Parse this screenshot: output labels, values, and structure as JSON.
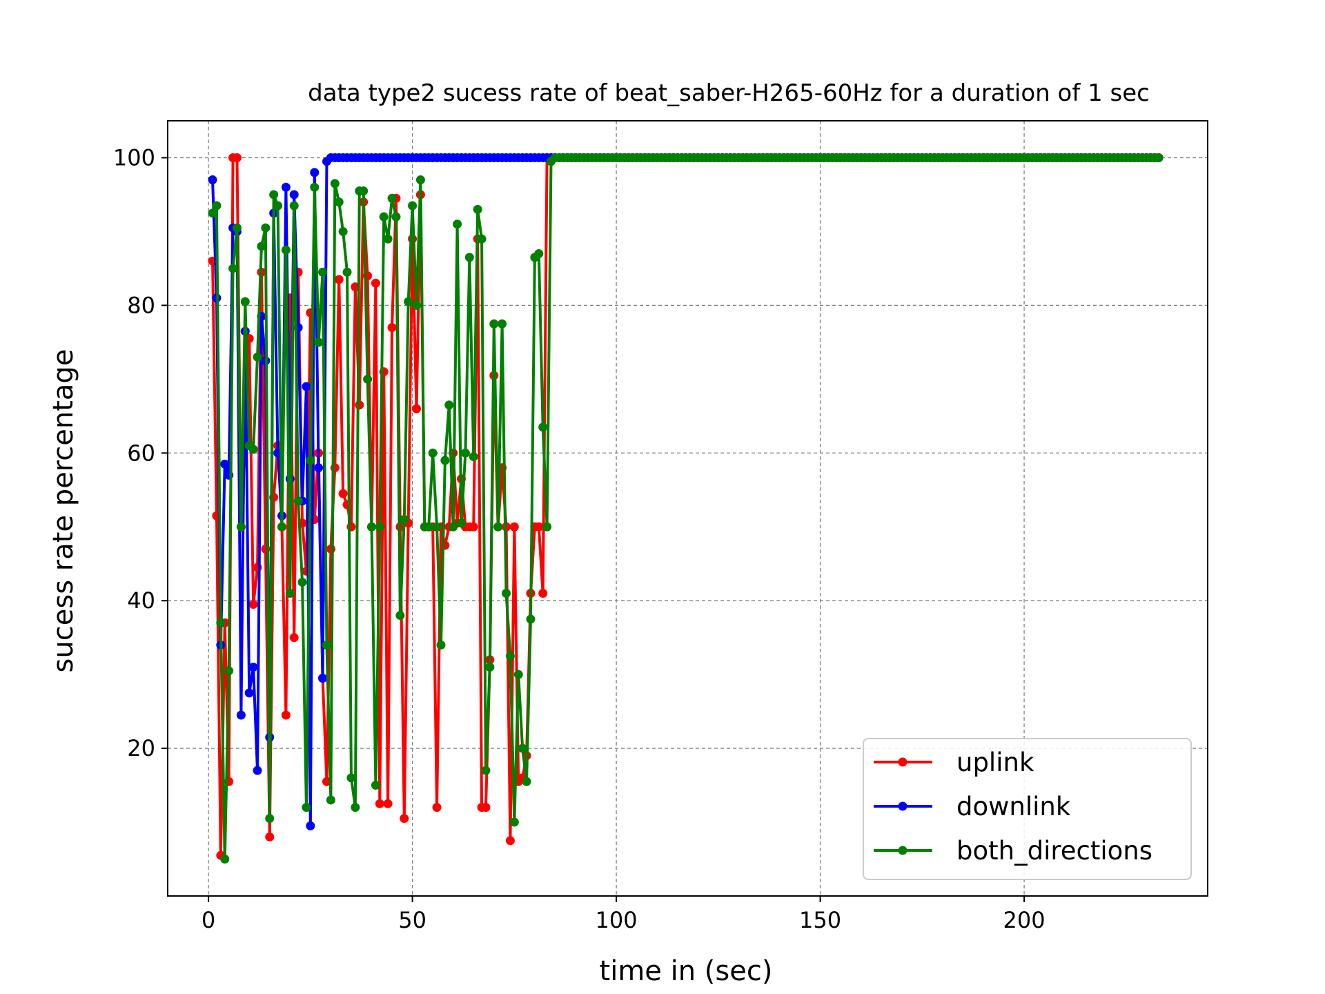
{
  "chart_data": {
    "type": "line",
    "title": "data type2 sucess rate of beat_saber-H265-60Hz for a duration of 1 sec",
    "xlabel": "time in (sec)",
    "ylabel": "sucess rate percentage",
    "xlim": [
      -10,
      245
    ],
    "ylim": [
      0,
      105
    ],
    "xticks": [
      0,
      50,
      100,
      150,
      200
    ],
    "yticks": [
      20,
      40,
      60,
      80,
      100
    ],
    "grid": true,
    "legend_position": "lower-right",
    "series": [
      {
        "name": "uplink",
        "color": "#ff0000",
        "x": [
          1,
          2,
          3,
          4,
          5,
          6,
          7,
          8,
          9,
          10,
          11,
          12,
          13,
          14,
          15,
          16,
          17,
          18,
          19,
          20,
          21,
          22,
          23,
          24,
          25,
          26,
          27,
          28,
          29,
          30,
          31,
          32,
          33,
          34,
          35,
          36,
          37,
          38,
          39,
          40,
          41,
          42,
          43,
          44,
          45,
          46,
          47,
          48,
          49,
          50,
          51,
          52,
          53,
          54,
          55,
          56,
          57,
          58,
          59,
          60,
          61,
          62,
          63,
          64,
          65,
          66,
          67,
          68,
          69,
          70,
          71,
          72,
          73,
          74,
          75,
          76,
          77,
          78,
          79,
          80,
          81,
          82,
          83,
          84,
          233
        ],
        "y": [
          86,
          51.5,
          5.5,
          37,
          15.5,
          100,
          100,
          50,
          62,
          75.5,
          39.5,
          44.5,
          84.5,
          47,
          8,
          54,
          61,
          50,
          24.5,
          81,
          35,
          84.5,
          50.5,
          44,
          79,
          51,
          60,
          29.5,
          15.5,
          47,
          58,
          83.5,
          54.5,
          53,
          50,
          82.5,
          66.5,
          94,
          84,
          50,
          83,
          12.5,
          71,
          12.5,
          77,
          94.5,
          50,
          10.5,
          50.5,
          89,
          66,
          95,
          50,
          50,
          50,
          12,
          50,
          47.5,
          50,
          60,
          50.5,
          56.5,
          50,
          50,
          50,
          89,
          12,
          12,
          32,
          70.5,
          50,
          58,
          50,
          7.5,
          50,
          15.5,
          16,
          19,
          41,
          50,
          50,
          41,
          100,
          100,
          100
        ],
        "y_note": ""
      },
      {
        "name": "downlink",
        "color": "#0000ff",
        "x": [
          1,
          2,
          3,
          4,
          5,
          6,
          7,
          8,
          9,
          10,
          11,
          12,
          13,
          14,
          15,
          16,
          17,
          18,
          19,
          20,
          21,
          22,
          23,
          24,
          25,
          26,
          27,
          28,
          29,
          30,
          233
        ],
        "y": [
          97,
          81,
          34,
          58.5,
          57,
          90.5,
          90,
          24.5,
          76.5,
          27.5,
          31,
          17,
          78.5,
          72.5,
          21.5,
          92.5,
          60,
          51.5,
          96,
          56.5,
          95,
          77,
          53.5,
          69,
          9.5,
          98,
          58,
          29.5,
          99.5,
          100,
          100
        ]
      },
      {
        "name": "both_directions",
        "color": "#008000",
        "x": [
          1,
          2,
          3,
          4,
          5,
          6,
          7,
          8,
          9,
          10,
          11,
          12,
          13,
          14,
          15,
          16,
          17,
          18,
          19,
          20,
          21,
          22,
          23,
          24,
          25,
          26,
          27,
          28,
          29,
          30,
          31,
          32,
          33,
          34,
          35,
          36,
          37,
          38,
          39,
          40,
          41,
          42,
          43,
          44,
          45,
          46,
          47,
          48,
          49,
          50,
          51,
          52,
          53,
          54,
          55,
          56,
          57,
          58,
          59,
          60,
          61,
          62,
          63,
          64,
          65,
          66,
          67,
          68,
          69,
          70,
          71,
          72,
          73,
          74,
          75,
          76,
          77,
          78,
          79,
          80,
          81,
          82,
          83,
          84,
          85,
          233
        ],
        "y": [
          92.5,
          93.5,
          37,
          5,
          30.5,
          85,
          90.5,
          50,
          80.5,
          61,
          60.5,
          73,
          88,
          90.5,
          10.5,
          95,
          93.5,
          50,
          87.5,
          41,
          93.5,
          53.5,
          42.5,
          12,
          59,
          96,
          75,
          84.5,
          34,
          13,
          96.5,
          94,
          90,
          84.5,
          16,
          12,
          95.5,
          95.5,
          70,
          50,
          15,
          50,
          92,
          89,
          94.5,
          92,
          38,
          51,
          80.5,
          93.5,
          80,
          97,
          50,
          50,
          60,
          50,
          34,
          59,
          66.5,
          50,
          91,
          50.5,
          60,
          86.5,
          59.5,
          93,
          89,
          17,
          31,
          77.5,
          50,
          77.5,
          41,
          32.5,
          10,
          30,
          20,
          15.5,
          37.5,
          86.5,
          87,
          63.5,
          50,
          99.5,
          100,
          100
        ]
      }
    ]
  }
}
